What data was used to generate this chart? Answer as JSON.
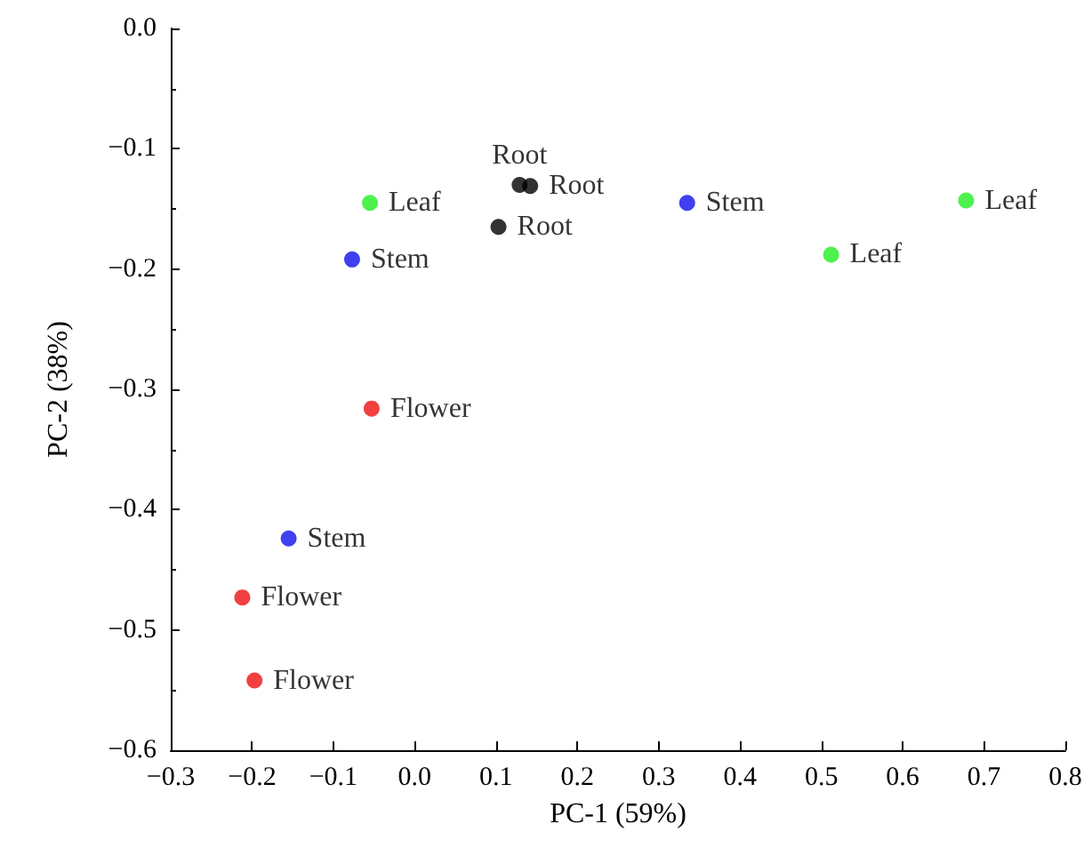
{
  "chart_data": {
    "type": "scatter",
    "xlabel": "PC-1 (59%)",
    "ylabel": "PC-2 (38%)",
    "grid": false,
    "legend": false,
    "marker": "circle",
    "xlim": [
      -0.3,
      0.8
    ],
    "ylim": [
      -0.6,
      0.0
    ],
    "xticks": [
      {
        "value": -0.3,
        "label": "−0.3"
      },
      {
        "value": -0.2,
        "label": "−0.2"
      },
      {
        "value": -0.1,
        "label": "−0.1"
      },
      {
        "value": 0,
        "label": "0.0"
      },
      {
        "value": 0.1,
        "label": "0.1"
      },
      {
        "value": 0.2,
        "label": "0.2"
      },
      {
        "value": 0.3,
        "label": "0.3"
      },
      {
        "value": 0.4,
        "label": "0.4"
      },
      {
        "value": 0.5,
        "label": "0.5"
      },
      {
        "value": 0.6,
        "label": "0.6"
      },
      {
        "value": 0.7,
        "label": "0.7"
      },
      {
        "value": 0.8,
        "label": "0.8"
      }
    ],
    "yticks": [
      {
        "value": -0.6,
        "label": "−0.6"
      },
      {
        "value": -0.5,
        "label": "−0.5"
      },
      {
        "value": -0.4,
        "label": "−0.4"
      },
      {
        "value": -0.3,
        "label": "−0.3"
      },
      {
        "value": -0.2,
        "label": "−0.2"
      },
      {
        "value": -0.1,
        "label": "−0.1"
      },
      {
        "value": 0,
        "label": "0.0"
      }
    ],
    "series": [
      {
        "name": "Root",
        "color": "#000000",
        "x": [
          0.129,
          0.142,
          0.103
        ],
        "values": [
          -0.13,
          -0.131,
          -0.165
        ]
      },
      {
        "name": "Leaf",
        "color": "#22ee22",
        "x": [
          -0.055,
          0.678,
          0.512
        ],
        "values": [
          -0.145,
          -0.143,
          -0.188
        ]
      },
      {
        "name": "Stem",
        "color": "#1010ee",
        "x": [
          -0.077,
          0.335,
          -0.155
        ],
        "values": [
          -0.192,
          -0.145,
          -0.424
        ]
      },
      {
        "name": "Flower",
        "color": "#ee1010",
        "x": [
          -0.053,
          -0.212,
          -0.197
        ],
        "values": [
          -0.316,
          -0.473,
          -0.542
        ]
      }
    ]
  }
}
